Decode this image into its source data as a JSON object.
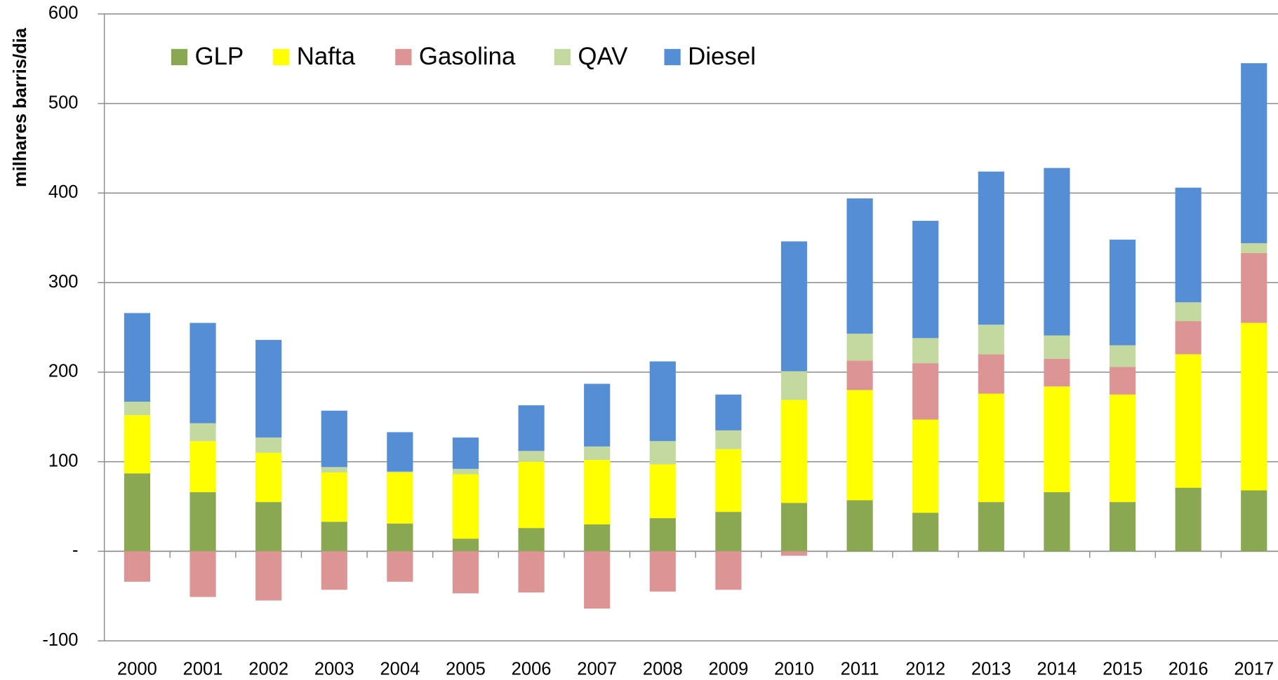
{
  "chart_data": {
    "type": "bar",
    "stacked": true,
    "y_label": "milhares barris/dia",
    "categories": [
      "2000",
      "2001",
      "2002",
      "2003",
      "2004",
      "2005",
      "2006",
      "2007",
      "2008",
      "2009",
      "2010",
      "2011",
      "2012",
      "2013",
      "2014",
      "2015",
      "2016",
      "2017"
    ],
    "series": [
      {
        "name": "GLP",
        "color": "#8aa752",
        "values": [
          87,
          66,
          55,
          33,
          31,
          14,
          26,
          30,
          37,
          44,
          54,
          57,
          43,
          55,
          66,
          55,
          71,
          68
        ]
      },
      {
        "name": "Nafta",
        "color": "#ffff00",
        "values": [
          65,
          57,
          55,
          55,
          57,
          72,
          74,
          72,
          60,
          70,
          115,
          123,
          104,
          121,
          118,
          120,
          149,
          187
        ]
      },
      {
        "name": "Gasolina",
        "color": "#dc9594",
        "values": [
          -34,
          -51,
          -55,
          -43,
          -34,
          -47,
          -46,
          -64,
          -45,
          -43,
          -5,
          33,
          63,
          44,
          31,
          31,
          37,
          78
        ]
      },
      {
        "name": "QAV",
        "color": "#c4d9a0",
        "values": [
          15,
          20,
          17,
          6,
          1,
          6,
          12,
          15,
          26,
          21,
          32,
          30,
          28,
          33,
          26,
          24,
          21,
          11
        ]
      },
      {
        "name": "Diesel",
        "color": "#558ed5",
        "values": [
          99,
          112,
          109,
          63,
          44,
          35,
          51,
          70,
          89,
          40,
          145,
          151,
          131,
          171,
          187,
          118,
          128,
          201
        ]
      }
    ],
    "ylim": [
      -100,
      600
    ],
    "yticks": [
      -100,
      {
        "value": 0,
        "label": "-"
      },
      100,
      200,
      300,
      400,
      500,
      600
    ],
    "grid": true
  }
}
